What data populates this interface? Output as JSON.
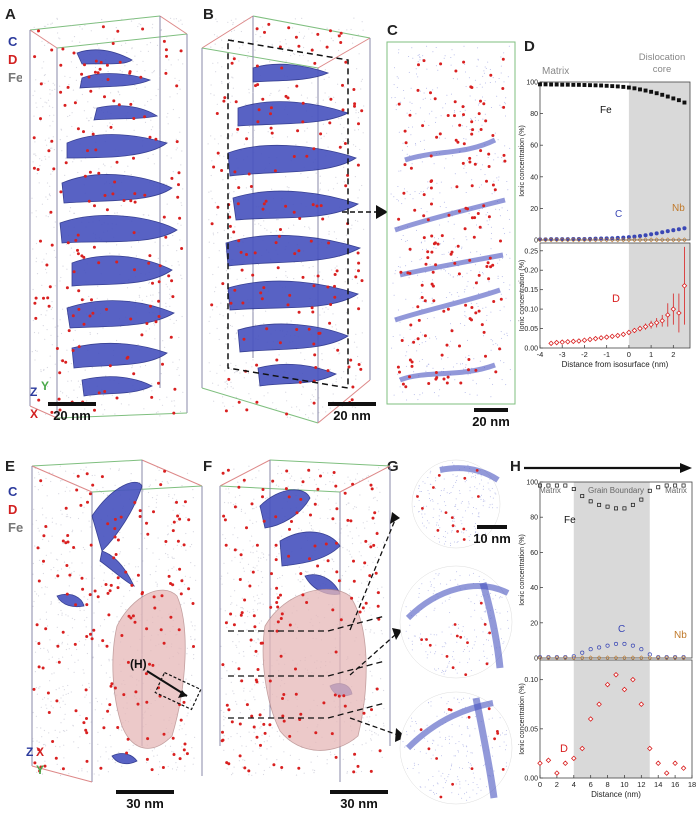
{
  "figure": {
    "panels": {
      "a": "A",
      "b": "B",
      "c": "C",
      "d": "D",
      "e": "E",
      "f": "F",
      "g": "G",
      "h": "H"
    },
    "legend": {
      "c": "C",
      "d": "D",
      "fe": "Fe"
    },
    "axes": {
      "z": "Z",
      "y": "Y",
      "x": "X"
    },
    "scalebars": {
      "a": "20 nm",
      "b": "20 nm",
      "c": "20 nm",
      "e": "30 nm",
      "f": "30 nm",
      "g": "10 nm"
    },
    "e_box_label": "(H)"
  },
  "colors": {
    "carbon": "#3a47b5",
    "deuterium": "#d92020",
    "iron": "#9a9a9a",
    "grey_region": "#d9d9d9",
    "nb": "#c0792a"
  },
  "chart_data": [
    {
      "panel": "D-top",
      "type": "scatter",
      "region_labels": {
        "left": "Matrix",
        "right_line1": "Dislocation",
        "right_line2": "core"
      },
      "shaded_x_range": [
        0,
        2.75
      ],
      "xlim": [
        -4,
        2.75
      ],
      "ylim": [
        0,
        100
      ],
      "yticks": [
        0,
        20,
        40,
        60,
        80,
        100
      ],
      "ylabel": "Ionic concentration (%)",
      "series_labels": {
        "fe": "Fe",
        "c": "C",
        "nb": "Nb"
      },
      "x": [
        -4,
        -3.75,
        -3.5,
        -3.25,
        -3,
        -2.75,
        -2.5,
        -2.25,
        -2,
        -1.75,
        -1.5,
        -1.25,
        -1,
        -0.75,
        -0.5,
        -0.25,
        0,
        0.25,
        0.5,
        0.75,
        1,
        1.25,
        1.5,
        1.75,
        2,
        2.25,
        2.5
      ],
      "series": [
        {
          "name": "Fe",
          "values": [
            98.5,
            98.5,
            98.4,
            98.4,
            98.3,
            98.3,
            98.2,
            98.2,
            98.1,
            98,
            97.9,
            97.8,
            97.6,
            97.4,
            97.2,
            96.9,
            96.5,
            96,
            95.3,
            94.6,
            93.8,
            92.9,
            91.9,
            90.8,
            89.6,
            88.5,
            87
          ]
        },
        {
          "name": "C",
          "values": [
            0.4,
            0.4,
            0.5,
            0.5,
            0.5,
            0.5,
            0.6,
            0.6,
            0.6,
            0.7,
            0.8,
            0.9,
            1,
            1.1,
            1.3,
            1.5,
            1.8,
            2.1,
            2.5,
            3,
            3.6,
            4.2,
            4.9,
            5.6,
            6.2,
            6.8,
            7.4
          ]
        },
        {
          "name": "Nb",
          "values": [
            0.1,
            0.1,
            0.1,
            0.1,
            0.1,
            0.1,
            0.1,
            0.1,
            0.1,
            0.1,
            0.1,
            0.1,
            0.1,
            0.1,
            0.1,
            0.1,
            0.1,
            0.1,
            0.1,
            0.1,
            0.1,
            0.1,
            0.1,
            0.1,
            0.1,
            0.1,
            0.1
          ]
        }
      ]
    },
    {
      "panel": "D-bottom",
      "type": "scatter",
      "shaded_x_range": [
        0,
        2.75
      ],
      "xlim": [
        -4,
        2.75
      ],
      "ylim": [
        0,
        0.27
      ],
      "yticks": [
        0,
        0.05,
        0.1,
        0.15,
        0.2,
        0.25
      ],
      "ytick_labels": [
        "0.00",
        "0.05",
        "0.10",
        "0.15",
        "0.20",
        "0.25"
      ],
      "xticks": [
        -4,
        -3,
        -2,
        -1,
        0,
        1,
        2
      ],
      "xtick_labels": [
        "-4",
        "-3",
        "-2",
        "-1",
        "0",
        "1",
        "2"
      ],
      "xlabel": "Distance from isosurface (nm)",
      "ylabel": "Ionic concentration (%)",
      "series_label": "D",
      "x": [
        -3.5,
        -3.25,
        -3,
        -2.75,
        -2.5,
        -2.25,
        -2,
        -1.75,
        -1.5,
        -1.25,
        -1,
        -0.75,
        -0.5,
        -0.25,
        0,
        0.25,
        0.5,
        0.75,
        1,
        1.25,
        1.5,
        1.75,
        2,
        2.25,
        2.5
      ],
      "values": [
        0.012,
        0.014,
        0.015,
        0.016,
        0.017,
        0.018,
        0.02,
        0.022,
        0.024,
        0.026,
        0.028,
        0.03,
        0.032,
        0.035,
        0.04,
        0.045,
        0.05,
        0.055,
        0.06,
        0.065,
        0.07,
        0.085,
        0.1,
        0.09,
        0.16
      ],
      "error": [
        0.002,
        0.002,
        0.002,
        0.002,
        0.002,
        0.002,
        0.002,
        0.002,
        0.002,
        0.003,
        0.003,
        0.003,
        0.003,
        0.003,
        0.005,
        0.006,
        0.007,
        0.008,
        0.01,
        0.012,
        0.015,
        0.03,
        0.04,
        0.05,
        0.1
      ]
    },
    {
      "panel": "H-top",
      "type": "scatter",
      "region_labels": {
        "left": "Matrix",
        "middle": "Grain Boundary",
        "right": "Matrix"
      },
      "shaded_x_range": [
        4,
        13
      ],
      "xlim": [
        0,
        18
      ],
      "ylim": [
        0,
        100
      ],
      "yticks": [
        0,
        20,
        40,
        60,
        80,
        100
      ],
      "ylabel": "Ionic concentration (%)",
      "series_labels": {
        "fe": "Fe",
        "c": "C",
        "nb": "Nb"
      },
      "x": [
        0,
        1,
        2,
        3,
        4,
        5,
        6,
        7,
        8,
        9,
        10,
        11,
        12,
        13,
        14,
        15,
        16,
        17
      ],
      "series": [
        {
          "name": "Fe",
          "values": [
            98,
            98,
            98,
            98,
            96,
            92,
            89,
            87,
            86,
            85,
            85,
            87,
            90,
            95,
            97,
            98,
            98,
            98
          ]
        },
        {
          "name": "C",
          "values": [
            0.5,
            0.5,
            0.5,
            0.5,
            1,
            3,
            5,
            6,
            7,
            8,
            8,
            7,
            5,
            2,
            0.5,
            0.5,
            0.5,
            0.5
          ]
        },
        {
          "name": "Nb",
          "values": [
            0.1,
            0.1,
            0.1,
            0.1,
            0.1,
            0.1,
            0.1,
            0.1,
            0.1,
            0.1,
            0.1,
            0.1,
            0.1,
            0.1,
            0.1,
            0.1,
            0.1,
            0.1
          ]
        }
      ]
    },
    {
      "panel": "H-bottom",
      "type": "scatter",
      "shaded_x_range": [
        4,
        13
      ],
      "xlim": [
        0,
        18
      ],
      "ylim": [
        0,
        0.12
      ],
      "yticks": [
        0,
        0.05,
        0.1
      ],
      "ytick_labels": [
        "0.00",
        "0.05",
        "0.10"
      ],
      "xticks": [
        0,
        2,
        4,
        6,
        8,
        10,
        12,
        14,
        16,
        18
      ],
      "xtick_labels": [
        "0",
        "2",
        "4",
        "6",
        "8",
        "10",
        "12",
        "14",
        "16",
        "18"
      ],
      "xlabel": "Distance (nm)",
      "ylabel": "Ionic concentration (%)",
      "series_label": "D",
      "x": [
        0,
        1,
        2,
        3,
        4,
        5,
        6,
        7,
        8,
        9,
        10,
        11,
        12,
        13,
        14,
        15,
        16,
        17
      ],
      "values": [
        0.015,
        0.018,
        0.005,
        0.015,
        0.02,
        0.03,
        0.06,
        0.075,
        0.095,
        0.105,
        0.09,
        0.1,
        0.075,
        0.03,
        0.015,
        0.005,
        0.015,
        0.01
      ]
    }
  ]
}
